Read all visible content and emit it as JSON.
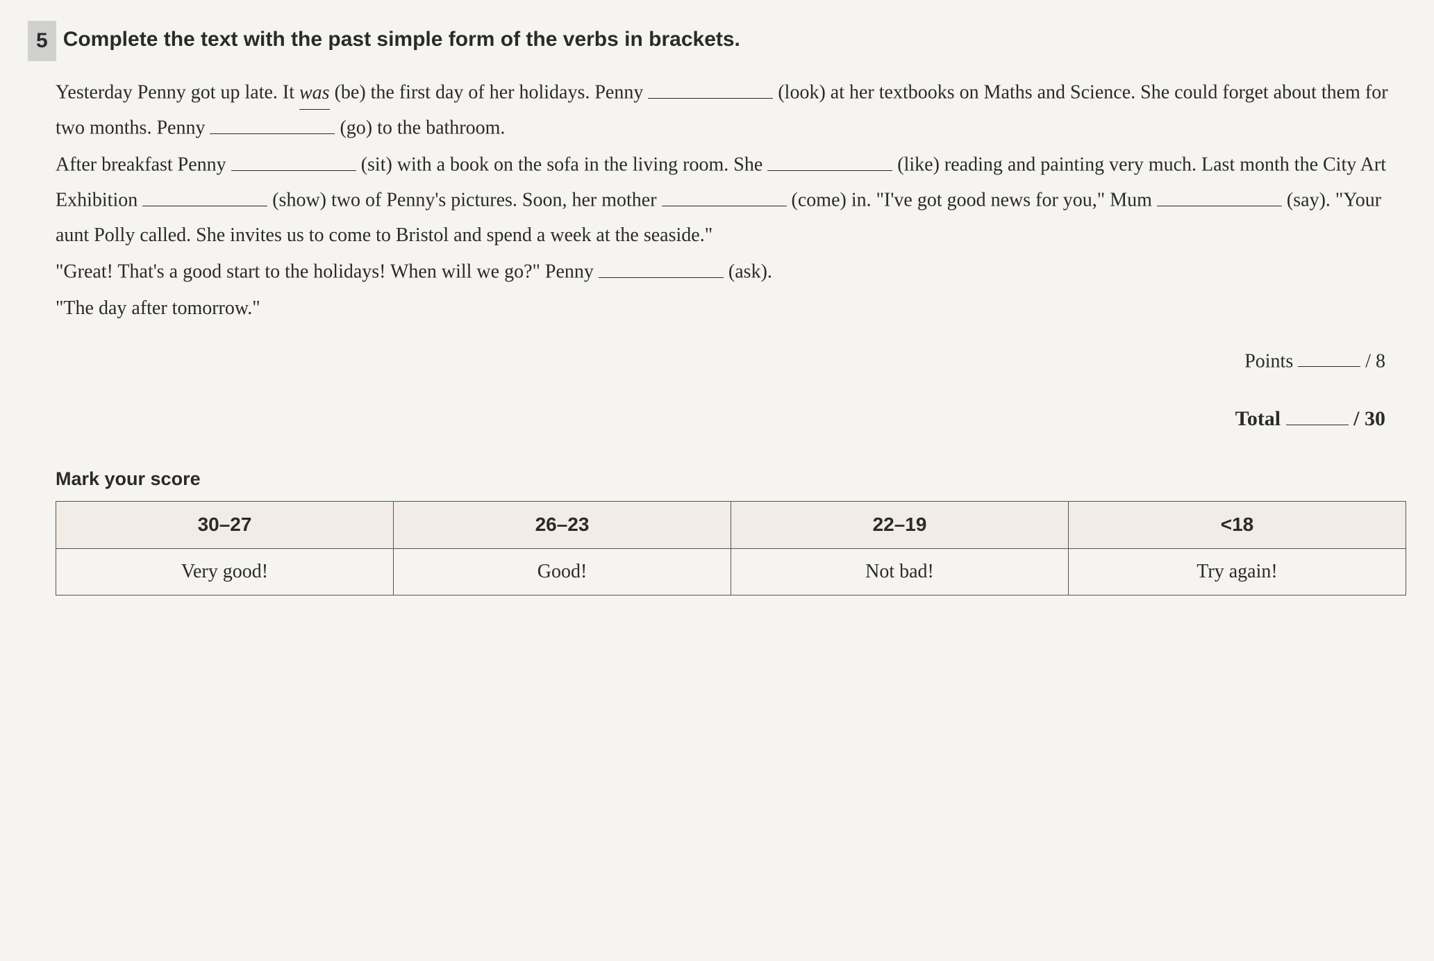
{
  "exercise": {
    "number": "5",
    "title": "Complete the text with the past simple form of the verbs in brackets.",
    "text": {
      "p1_pre": "Yesterday Penny got up late. It ",
      "example_answer": "was",
      "p1_mid": " (be) the first day of her holidays. Penny ",
      "p1_verb1": "(look) at her textbooks on Maths and Science. She could forget about them for two months. Penny ",
      "p1_verb2": " (go) to the bathroom.",
      "p2_pre": "After breakfast Penny ",
      "p2_mid1": " (sit) with a book on the sofa in the living room. She ",
      "p2_mid2": " (like) reading and painting very much. Last month the City Art Exhibition ",
      "p2_mid3": " (show) two of Penny's pictures. Soon, her mother ",
      "p2_mid4": " (come) in. \"I've got good news for you,\" Mum ",
      "p2_mid5": " (say). \"Your aunt Polly called. She invites us to come to Bristol and spend a week at the seaside.\"",
      "p3": "\"Great! That's a good start to the holidays! When will we go?\" Penny ",
      "p3_end": " (ask).",
      "p4": "\"The day after tomorrow.\""
    }
  },
  "scoring": {
    "points_label": "Points ",
    "points_max": "/ 8",
    "total_label": "Total ",
    "total_max": "/ 30",
    "mark_label": "Mark your score"
  },
  "score_table": {
    "columns": [
      "30–27",
      "26–23",
      "22–19",
      "<18"
    ],
    "rows": [
      [
        "Very good!",
        "Good!",
        "Not bad!",
        "Try again!"
      ]
    ],
    "header_bg": "#f2ece6",
    "border_color": "#555555"
  }
}
